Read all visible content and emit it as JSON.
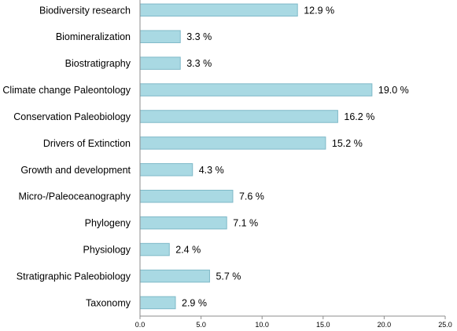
{
  "chart_data": {
    "type": "bar",
    "orientation": "horizontal",
    "categories": [
      "Biodiversity research",
      "Biomineralization",
      "Biostratigraphy",
      "Climate change Paleontology",
      "Conservation Paleobiology",
      "Drivers of Extinction",
      "Growth and development",
      "Micro-/Paleoceanography",
      "Phylogeny",
      "Physiology",
      "Stratigraphic Paleobiology",
      "Taxonomy"
    ],
    "values": [
      12.9,
      3.3,
      3.3,
      19.0,
      16.2,
      15.2,
      4.3,
      7.6,
      7.1,
      2.4,
      5.7,
      2.9
    ],
    "value_labels": [
      "12.9 %",
      "3.3 %",
      "3.3 %",
      "19.0 %",
      "16.2 %",
      "15.2 %",
      "4.3 %",
      "7.6 %",
      "7.1 %",
      "2.4 %",
      "5.7 %",
      "2.9 %"
    ],
    "x_ticks": [
      "0.0",
      "5.0",
      "10.0",
      "15.0",
      "20.0",
      "25.0"
    ],
    "xlim": [
      0,
      25
    ],
    "title": "",
    "xlabel": "",
    "ylabel": "",
    "grid": false,
    "legend": "none",
    "bar_color": "#a9d9e3",
    "bar_edge_color": "#7fb9c8"
  }
}
